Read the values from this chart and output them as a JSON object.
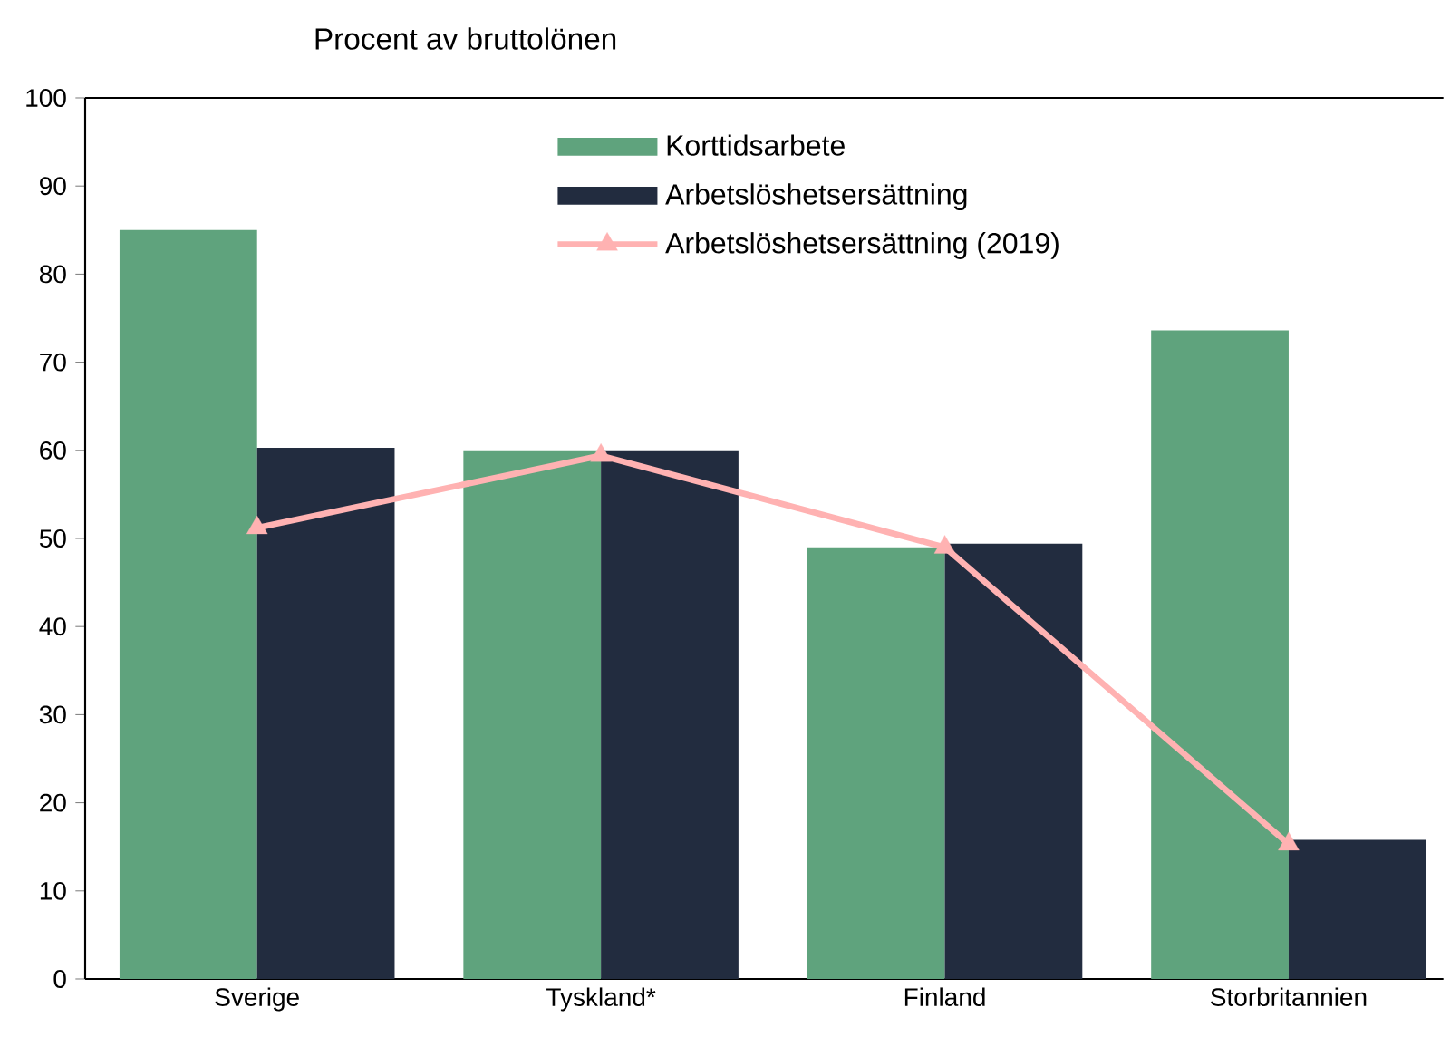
{
  "chart_data": {
    "type": "bar",
    "ylabel": "Procent av bruttolönen",
    "categories": [
      "Sverige",
      "Tyskland*",
      "Finland",
      "Storbritannien"
    ],
    "series": [
      {
        "name": "Korttidsarbete",
        "color": "#5fa37d",
        "values": [
          85,
          60,
          49,
          73.6
        ]
      },
      {
        "name": "Arbetslöshetsersättning",
        "color": "#222c3f",
        "values": [
          60.3,
          60,
          49.4,
          15.8
        ]
      },
      {
        "name": "Arbetslöshetsersättning (2019)",
        "type": "line",
        "color": "#ffb2b2",
        "marker": "triangle",
        "values": [
          51.2,
          59.4,
          49,
          15.3
        ]
      }
    ],
    "ylim": [
      0,
      100
    ],
    "yticks": [
      0,
      10,
      20,
      30,
      40,
      50,
      60,
      70,
      80,
      90,
      100
    ],
    "legend": "top",
    "grid": false
  }
}
